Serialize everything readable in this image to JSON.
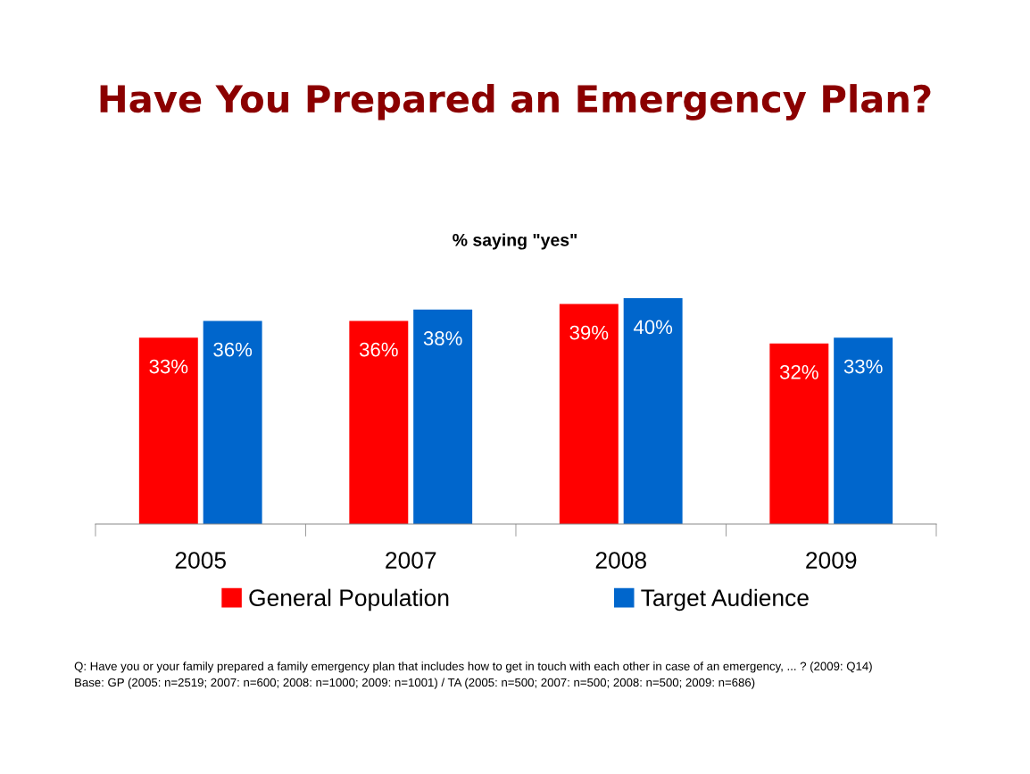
{
  "chart_data": {
    "type": "bar",
    "title": "Have You Prepared an Emergency Plan?",
    "subtitle": "% saying \"yes\"",
    "categories": [
      "2005",
      "2007",
      "2008",
      "2009"
    ],
    "series": [
      {
        "name": "General Population",
        "color": "#ff0000",
        "values": [
          33,
          36,
          39,
          32
        ],
        "value_labels": [
          "33%",
          "36%",
          "39%",
          "32%"
        ]
      },
      {
        "name": "Target Audience",
        "color": "#0066cc",
        "values": [
          36,
          38,
          40,
          33
        ],
        "value_labels": [
          "36%",
          "38%",
          "40%",
          "33%"
        ]
      }
    ],
    "legend": "bottom",
    "grid": false,
    "annotations": [
      "Q: Have you or your family prepared a family emergency plan that includes how to get in touch with each other in case of an emergency, ... ? (2009: Q14)",
      "Base: GP (2005: n=2519; 2007: n=600; 2008: n=1000; 2009: n=1001) / TA (2005: n=500; 2007: n=500; 2008: n=500; 2009: n=686)"
    ]
  }
}
